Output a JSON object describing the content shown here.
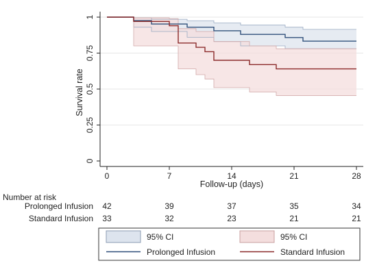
{
  "chart_data": {
    "type": "line",
    "title": "",
    "xlabel": "Follow-up (days)",
    "ylabel": "Survival rate",
    "xlim": [
      0,
      28
    ],
    "ylim": [
      0,
      1
    ],
    "x_ticks": [
      "0",
      "7",
      "14",
      "21",
      "28"
    ],
    "y_ticks": [
      "0",
      "0.25",
      "0.5",
      "0.75",
      "1"
    ],
    "grid": "horizontal",
    "series": [
      {
        "name": "Prolonged Infusion",
        "color": "#2f4f7a",
        "ci_color": "#dde4ee",
        "steps": [
          {
            "x": 0,
            "y": 1.0
          },
          {
            "x": 3,
            "y": 0.976
          },
          {
            "x": 5,
            "y": 0.952
          },
          {
            "x": 7,
            "y": 0.952
          },
          {
            "x": 9,
            "y": 0.93
          },
          {
            "x": 12,
            "y": 0.905
          },
          {
            "x": 15,
            "y": 0.88
          },
          {
            "x": 20,
            "y": 0.858
          },
          {
            "x": 22,
            "y": 0.833
          },
          {
            "x": 28,
            "y": 0.833
          }
        ],
        "ci_lower": [
          {
            "x": 0,
            "y": 1.0
          },
          {
            "x": 3,
            "y": 0.93
          },
          {
            "x": 5,
            "y": 0.9
          },
          {
            "x": 9,
            "y": 0.86
          },
          {
            "x": 12,
            "y": 0.83
          },
          {
            "x": 15,
            "y": 0.8
          },
          {
            "x": 20,
            "y": 0.78
          },
          {
            "x": 28,
            "y": 0.78
          }
        ],
        "ci_upper": [
          {
            "x": 0,
            "y": 1.0
          },
          {
            "x": 3,
            "y": 0.995
          },
          {
            "x": 5,
            "y": 0.985
          },
          {
            "x": 9,
            "y": 0.975
          },
          {
            "x": 12,
            "y": 0.96
          },
          {
            "x": 15,
            "y": 0.945
          },
          {
            "x": 20,
            "y": 0.93
          },
          {
            "x": 22,
            "y": 0.915
          },
          {
            "x": 28,
            "y": 0.915
          }
        ]
      },
      {
        "name": "Standard Infusion",
        "color": "#8b2a2a",
        "ci_color": "#f4dede",
        "steps": [
          {
            "x": 0,
            "y": 1.0
          },
          {
            "x": 3,
            "y": 0.97
          },
          {
            "x": 7,
            "y": 0.94
          },
          {
            "x": 8,
            "y": 0.82
          },
          {
            "x": 10,
            "y": 0.79
          },
          {
            "x": 11,
            "y": 0.76
          },
          {
            "x": 12,
            "y": 0.7
          },
          {
            "x": 16,
            "y": 0.67
          },
          {
            "x": 19,
            "y": 0.64
          },
          {
            "x": 28,
            "y": 0.64
          }
        ],
        "ci_lower": [
          {
            "x": 0,
            "y": 1.0
          },
          {
            "x": 3,
            "y": 0.8
          },
          {
            "x": 8,
            "y": 0.64
          },
          {
            "x": 10,
            "y": 0.6
          },
          {
            "x": 11,
            "y": 0.57
          },
          {
            "x": 12,
            "y": 0.51
          },
          {
            "x": 16,
            "y": 0.48
          },
          {
            "x": 19,
            "y": 0.455
          },
          {
            "x": 28,
            "y": 0.455
          }
        ],
        "ci_upper": [
          {
            "x": 0,
            "y": 1.0
          },
          {
            "x": 3,
            "y": 0.995
          },
          {
            "x": 7,
            "y": 0.99
          },
          {
            "x": 8,
            "y": 0.92
          },
          {
            "x": 10,
            "y": 0.9
          },
          {
            "x": 12,
            "y": 0.83
          },
          {
            "x": 16,
            "y": 0.8
          },
          {
            "x": 19,
            "y": 0.78
          },
          {
            "x": 28,
            "y": 0.78
          }
        ]
      }
    ],
    "risk_table": {
      "title": "Number at risk",
      "rows": [
        {
          "label": "Prolonged Infusion",
          "values": [
            "42",
            "39",
            "37",
            "35",
            "34"
          ]
        },
        {
          "label": "Standard Infusion",
          "values": [
            "33",
            "32",
            "23",
            "21",
            "21"
          ]
        }
      ]
    },
    "legend": {
      "placement": "bottom",
      "items": [
        {
          "type": "area",
          "label": "95% CI",
          "color": "#dde4ee",
          "border": "#8c9cb3"
        },
        {
          "type": "area",
          "label": "95% CI",
          "color": "#f4dede",
          "border": "#c9a0a0"
        },
        {
          "type": "line",
          "label": "Prolonged Infusion",
          "color": "#2f4f7a"
        },
        {
          "type": "line",
          "label": "Standard Infusion",
          "color": "#8b2a2a"
        }
      ]
    }
  }
}
